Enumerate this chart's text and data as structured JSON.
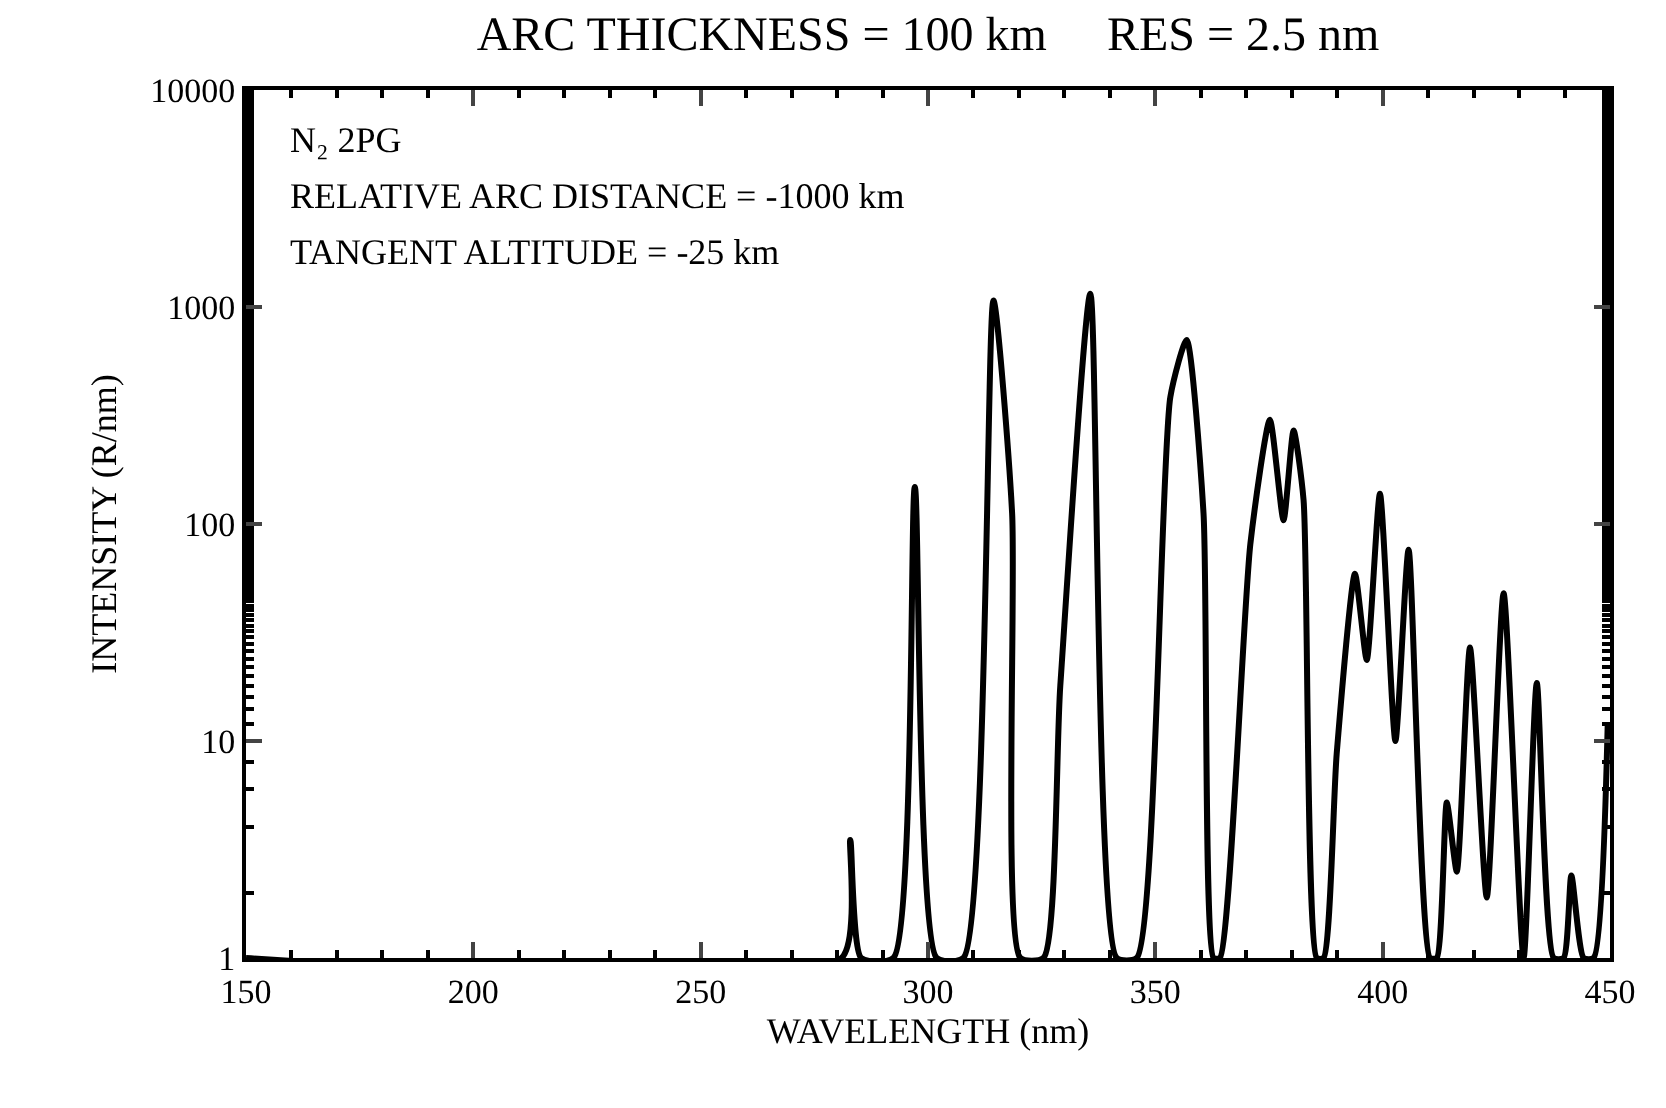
{
  "chart_data": {
    "type": "line",
    "title": "ARC THICKNESS = 100 km     RES = 2.5 nm",
    "xlabel": "WAVELENGTH (nm)",
    "ylabel": "INTENSITY (R/nm)",
    "annotations": [
      "N₂ 2PG",
      "RELATIVE ARC DISTANCE = -1000 km",
      "TANGENT ALTITUDE = -25 km"
    ],
    "log": "y",
    "grid": false,
    "legend": false,
    "marker": "none",
    "line_style": "solid",
    "xlim": [
      150,
      450
    ],
    "xticks": [
      150,
      200,
      250,
      300,
      350,
      400,
      450
    ],
    "ylim": [
      1,
      10000
    ],
    "yticks": [
      1,
      10,
      100,
      1000,
      10000
    ],
    "series": [
      {
        "color": "#000000",
        "x": [
          150,
          281,
          282.9,
          285.3,
          292.4,
          297.1,
          301.9,
          307.8,
          314.4,
          318.5,
          320.3,
          325.4,
          329.1,
          335.7,
          341.5,
          345.9,
          353.3,
          356.9,
          360.6,
          362.8,
          364.2,
          370.9,
          375.2,
          378.2,
          380.4,
          382.6,
          385.5,
          387,
          389.9,
          393.9,
          396.5,
          399.4,
          402.8,
          405.7,
          410.4,
          411.9,
          414.1,
          416.3,
          419.2,
          422.9,
          426.6,
          431,
          433.9,
          437.6,
          439.8,
          441.5,
          444.2,
          446.4,
          449.5
        ],
        "values": [
          1,
          1,
          3.5,
          1,
          1,
          148,
          1,
          1,
          1070,
          112,
          1,
          1,
          18,
          1150,
          1,
          1,
          385,
          705,
          112,
          1,
          1,
          81,
          302,
          104,
          270,
          129,
          1,
          1,
          8.8,
          59,
          23.6,
          138,
          10,
          76,
          1,
          1,
          5.2,
          2.5,
          27,
          1.9,
          48,
          1,
          18.5,
          1,
          1,
          2.4,
          1,
          1,
          12
        ]
      }
    ]
  }
}
